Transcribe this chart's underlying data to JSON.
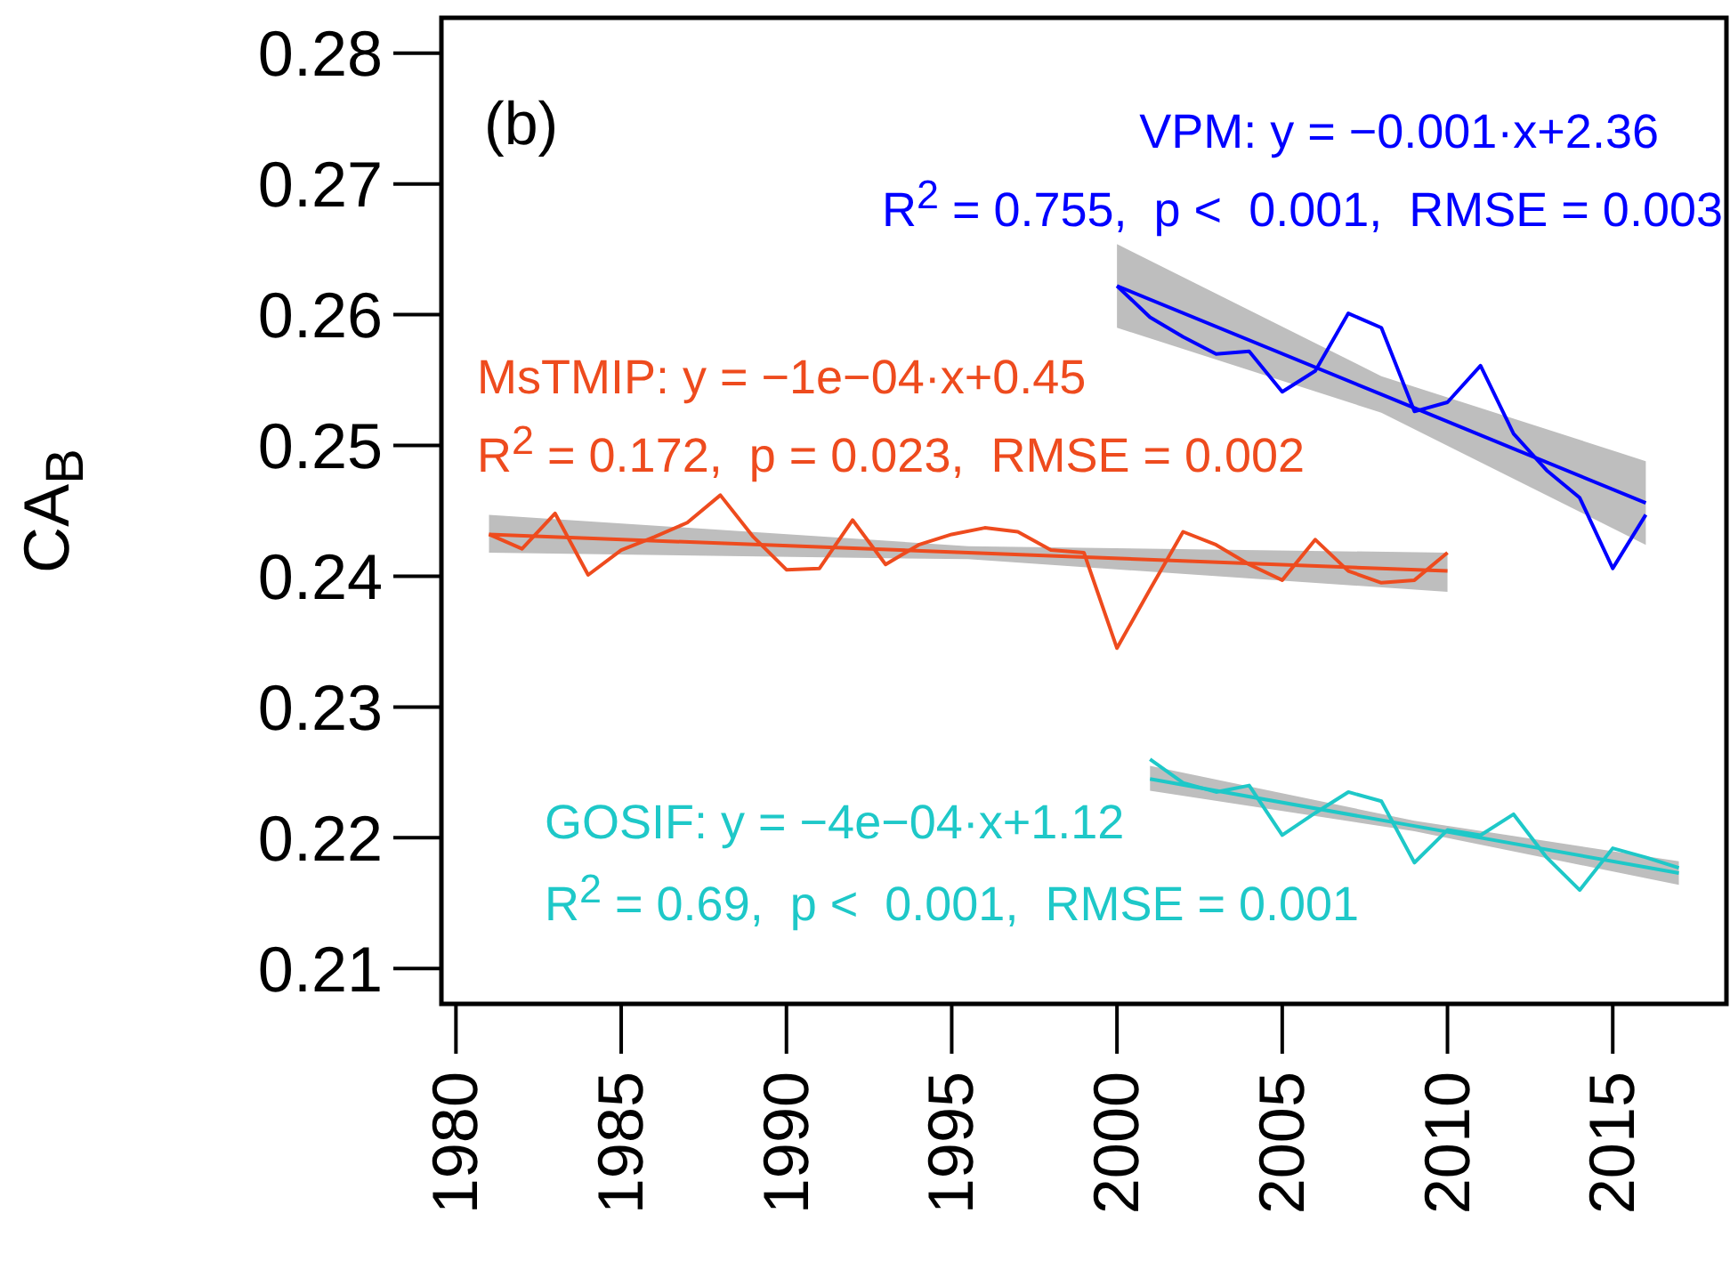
{
  "chart_data": {
    "type": "line",
    "ylabel": "CA$_{B}$",
    "annotations": [
      "(b)",
      "VPM: y = −0.001·x+2.36",
      "R$^{2}$ = 0.755,  p <  0.001,  RMSE = 0.003",
      "MsTMIP: y = −1e−04·x+0.45",
      "R$^{2}$ = 0.172,  p = 0.023,  RMSE = 0.002",
      "GOSIF: y = −4e−04·x+1.12",
      "R$^{2}$ = 0.69,  p <  0.001,  RMSE = 0.001"
    ],
    "xlim": [
      1979.56,
      2018.44
    ],
    "xticks": [
      1980,
      1985,
      1990,
      1995,
      2000,
      2005,
      2010,
      2015
    ],
    "ylim": [
      0.2073,
      0.2827
    ],
    "yticks": [
      0.21,
      0.22,
      0.23,
      0.24,
      0.25,
      0.26,
      0.27,
      0.28
    ],
    "series": [
      {
        "color": "#0000ff",
        "x": [
          2000,
          2001,
          2002,
          2003,
          2004,
          2005,
          2006,
          2007,
          2008,
          2009,
          2010,
          2011,
          2012,
          2013,
          2014,
          2015,
          2016
        ],
        "values": [
          0.2622,
          0.2598,
          0.2583,
          0.257,
          0.2572,
          0.2541,
          0.2557,
          0.2601,
          0.259,
          0.2526,
          0.2533,
          0.2561,
          0.2509,
          0.2481,
          0.246,
          0.2406,
          0.2447
        ]
      },
      {
        "color": "#ee4b1e",
        "x": [
          1981,
          1982,
          1983,
          1984,
          1985,
          1986,
          1987,
          1988,
          1989,
          1990,
          1991,
          1992,
          1993,
          1994,
          1995,
          1996,
          1997,
          1998,
          1999,
          2000,
          2001,
          2002,
          2003,
          2004,
          2005,
          2006,
          2007,
          2008,
          2009,
          2010
        ],
        "values": [
          0.2432,
          0.2421,
          0.2448,
          0.2401,
          0.242,
          0.243,
          0.2441,
          0.2462,
          0.243,
          0.2405,
          0.2406,
          0.2443,
          0.2409,
          0.2424,
          0.2432,
          0.2437,
          0.2434,
          0.242,
          0.2418,
          0.2345,
          0.239,
          0.2434,
          0.2424,
          0.2409,
          0.2397,
          0.2428,
          0.2404,
          0.2395,
          0.2397,
          0.2418
        ]
      },
      {
        "color": "#1ec8c8",
        "x": [
          2001,
          2002,
          2003,
          2004,
          2005,
          2006,
          2007,
          2008,
          2009,
          2010,
          2011,
          2012,
          2013,
          2014,
          2015,
          2016,
          2017
        ],
        "values": [
          0.226,
          0.2242,
          0.2235,
          0.224,
          0.2202,
          0.2219,
          0.2235,
          0.2228,
          0.2181,
          0.2206,
          0.2202,
          0.2218,
          0.2185,
          0.216,
          0.2192,
          0.2185,
          0.2177
        ]
      },
      {
        "color": "#0000ff",
        "x": [
          2000,
          2008,
          2016
        ],
        "values": [
          0.2622,
          0.2539,
          0.2456
        ],
        "lower": [
          0.259,
          0.2525,
          0.2424
        ],
        "upper": [
          0.2654,
          0.2553,
          0.2488
        ]
      },
      {
        "color": "#ee4b1e",
        "x": [
          1981,
          1995.5,
          2010
        ],
        "values": [
          0.2432,
          0.2418,
          0.2404
        ],
        "lower": [
          0.2418,
          0.2413,
          0.2388
        ],
        "upper": [
          0.2447,
          0.2423,
          0.2418
        ]
      },
      {
        "color": "#1ec8c8",
        "x": [
          2001,
          2009,
          2017
        ],
        "values": [
          0.2245,
          0.2209,
          0.2173
        ],
        "lower": [
          0.2236,
          0.2205,
          0.2164
        ],
        "upper": [
          0.2255,
          0.2213,
          0.2182
        ]
      }
    ]
  }
}
